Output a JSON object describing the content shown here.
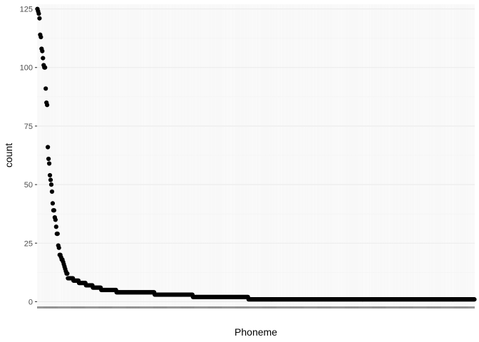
{
  "chart_data": {
    "type": "scatter",
    "title": "",
    "xlabel": "Phoneme",
    "ylabel": "count",
    "ylim": [
      -2,
      127
    ],
    "y_ticks": [
      0,
      25,
      50,
      75,
      100,
      125
    ],
    "y_tick_labels": [
      "0",
      "25",
      "50",
      "75",
      "100",
      "125"
    ],
    "grid": true,
    "legend": "none",
    "x_tick_labels_legible": false,
    "point_color": "#000000",
    "panel_color": "#ffffff",
    "grid_color": "#ebebeb",
    "x_category_count": 630,
    "head_counts": [
      125,
      124,
      123,
      121,
      114,
      113,
      108,
      107,
      104,
      101,
      100,
      100,
      91,
      85,
      84,
      66,
      61,
      59,
      54,
      52,
      50,
      47,
      42,
      39,
      39,
      36,
      35,
      32,
      29,
      29,
      24,
      23,
      20,
      20,
      19,
      18,
      18,
      17,
      16,
      15,
      14,
      13,
      12,
      12
    ],
    "tail_runs": [
      {
        "count": 10,
        "n": 8
      },
      {
        "count": 9,
        "n": 8
      },
      {
        "count": 8,
        "n": 10
      },
      {
        "count": 7,
        "n": 10
      },
      {
        "count": 6,
        "n": 12
      },
      {
        "count": 5,
        "n": 22
      },
      {
        "count": 4,
        "n": 55
      },
      {
        "count": 3,
        "n": 55
      },
      {
        "count": 2,
        "n": 80
      },
      {
        "count": 1,
        "n": 326
      }
    ]
  }
}
